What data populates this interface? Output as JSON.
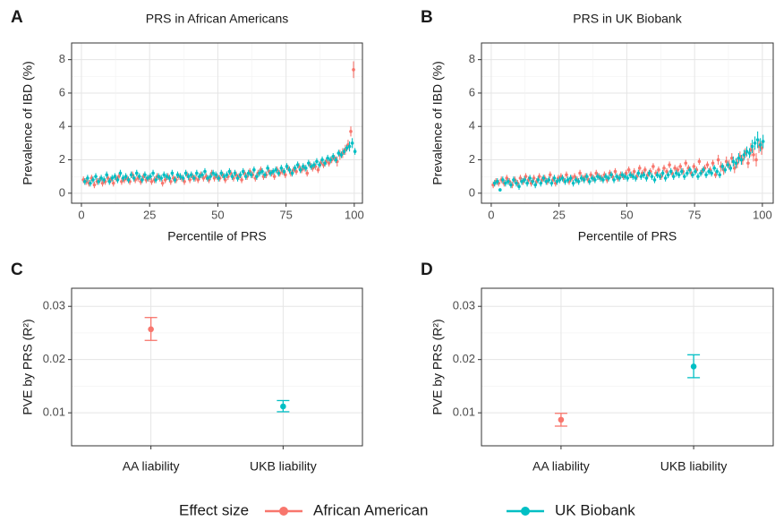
{
  "legend": {
    "title": "Effect size",
    "entries": [
      {
        "name": "African American",
        "color": "#f8766d"
      },
      {
        "name": "UK Biobank",
        "color": "#00bfc4"
      }
    ]
  },
  "chart_data": [
    {
      "type": "errorscatter",
      "panel_label": "A",
      "title": "PRS in African Americans",
      "x_label": "Percentile of PRS",
      "y_label": "Prevalence of IBD (%)",
      "xlim": [
        -3.6,
        103
      ],
      "xticks": [
        0,
        25,
        50,
        75,
        100
      ],
      "ylim": [
        -0.6,
        9
      ],
      "yticks": [
        0,
        2,
        4,
        6,
        8
      ],
      "grid": true,
      "x": [
        1,
        2,
        3,
        4,
        5,
        6,
        7,
        8,
        9,
        10,
        11,
        12,
        13,
        14,
        15,
        16,
        17,
        18,
        19,
        20,
        21,
        22,
        23,
        24,
        25,
        26,
        27,
        28,
        29,
        30,
        31,
        32,
        33,
        34,
        35,
        36,
        37,
        38,
        39,
        40,
        41,
        42,
        43,
        44,
        45,
        46,
        47,
        48,
        49,
        50,
        51,
        52,
        53,
        54,
        55,
        56,
        57,
        58,
        59,
        60,
        61,
        62,
        63,
        64,
        65,
        66,
        67,
        68,
        69,
        70,
        71,
        72,
        73,
        74,
        75,
        76,
        77,
        78,
        79,
        80,
        81,
        82,
        83,
        84,
        85,
        86,
        87,
        88,
        89,
        90,
        91,
        92,
        93,
        94,
        95,
        96,
        97,
        98,
        99,
        100
      ],
      "series": [
        {
          "color": "#f8766d",
          "values": [
            0.8,
            0.7,
            0.6,
            0.9,
            0.5,
            0.7,
            0.8,
            0.6,
            0.7,
            0.9,
            0.8,
            0.6,
            0.9,
            1.0,
            0.7,
            0.8,
            0.9,
            0.7,
            1.1,
            0.8,
            0.9,
            0.7,
            1.0,
            0.8,
            0.9,
            0.7,
            0.8,
            1.0,
            0.9,
            0.6,
            0.8,
            1.0,
            0.7,
            0.9,
            0.8,
            1.0,
            0.9,
            0.7,
            1.1,
            0.8,
            1.0,
            0.9,
            0.8,
            1.1,
            0.9,
            1.0,
            0.8,
            1.2,
            0.9,
            1.0,
            0.9,
            1.1,
            0.8,
            1.0,
            1.2,
            0.9,
            1.1,
            1.0,
            0.8,
            1.2,
            1.0,
            1.3,
            1.1,
            0.9,
            1.2,
            1.4,
            1.0,
            1.1,
            1.3,
            1.2,
            1.0,
            1.4,
            1.2,
            1.3,
            1.1,
            1.5,
            1.2,
            1.4,
            1.3,
            1.6,
            1.4,
            1.5,
            1.2,
            1.7,
            1.5,
            1.6,
            1.4,
            1.8,
            1.7,
            1.9,
            1.8,
            2.0,
            2.1,
            1.9,
            2.3,
            2.4,
            2.6,
            2.9,
            3.7,
            7.4
          ],
          "errors": [
            0.2,
            0.2,
            0.2,
            0.2,
            0.2,
            0.2,
            0.2,
            0.2,
            0.2,
            0.2,
            0.2,
            0.2,
            0.2,
            0.2,
            0.2,
            0.2,
            0.2,
            0.2,
            0.2,
            0.2,
            0.2,
            0.2,
            0.2,
            0.2,
            0.2,
            0.2,
            0.2,
            0.2,
            0.2,
            0.2,
            0.2,
            0.2,
            0.2,
            0.2,
            0.2,
            0.2,
            0.2,
            0.2,
            0.2,
            0.2,
            0.2,
            0.2,
            0.2,
            0.2,
            0.2,
            0.2,
            0.2,
            0.2,
            0.2,
            0.2,
            0.2,
            0.2,
            0.2,
            0.2,
            0.2,
            0.2,
            0.2,
            0.2,
            0.2,
            0.2,
            0.2,
            0.2,
            0.2,
            0.2,
            0.2,
            0.2,
            0.2,
            0.2,
            0.2,
            0.2,
            0.2,
            0.2,
            0.2,
            0.2,
            0.2,
            0.2,
            0.2,
            0.2,
            0.2,
            0.2,
            0.2,
            0.2,
            0.2,
            0.2,
            0.2,
            0.2,
            0.2,
            0.2,
            0.2,
            0.2,
            0.2,
            0.2,
            0.2,
            0.3,
            0.3,
            0.3,
            0.3,
            0.3,
            0.3,
            0.5
          ]
        },
        {
          "color": "#00bfc4",
          "values": [
            0.7,
            0.9,
            0.6,
            0.8,
            1.0,
            0.7,
            0.9,
            0.8,
            1.1,
            0.7,
            0.9,
            1.0,
            0.8,
            1.2,
            0.9,
            1.0,
            0.8,
            1.1,
            0.9,
            1.2,
            1.0,
            0.8,
            1.1,
            0.9,
            1.0,
            1.2,
            0.8,
            1.0,
            0.9,
            1.1,
            1.0,
            0.9,
            1.2,
            0.8,
            1.1,
            1.0,
            0.9,
            1.2,
            1.0,
            1.1,
            0.9,
            1.2,
            1.0,
            1.1,
            1.3,
            0.9,
            1.0,
            1.2,
            1.1,
            0.9,
            1.2,
            1.0,
            1.1,
            1.3,
            1.0,
            1.2,
            0.9,
            1.1,
            1.3,
            1.0,
            1.2,
            1.1,
            1.4,
            1.0,
            1.2,
            1.3,
            1.1,
            1.5,
            1.2,
            1.3,
            1.4,
            1.2,
            1.5,
            1.3,
            1.6,
            1.4,
            1.2,
            1.5,
            1.7,
            1.4,
            1.6,
            1.5,
            1.8,
            1.6,
            1.7,
            1.9,
            1.7,
            2.0,
            1.8,
            2.1,
            2.0,
            2.2,
            2.0,
            2.4,
            2.3,
            2.5,
            2.7,
            2.8,
            3.0,
            2.5
          ],
          "errors": [
            0.2,
            0.2,
            0.2,
            0.2,
            0.2,
            0.2,
            0.2,
            0.2,
            0.2,
            0.2,
            0.2,
            0.2,
            0.2,
            0.2,
            0.2,
            0.2,
            0.2,
            0.2,
            0.2,
            0.2,
            0.2,
            0.2,
            0.2,
            0.2,
            0.2,
            0.2,
            0.2,
            0.2,
            0.2,
            0.2,
            0.2,
            0.2,
            0.2,
            0.2,
            0.2,
            0.2,
            0.2,
            0.2,
            0.2,
            0.2,
            0.2,
            0.2,
            0.2,
            0.2,
            0.2,
            0.2,
            0.2,
            0.2,
            0.2,
            0.2,
            0.2,
            0.2,
            0.2,
            0.2,
            0.2,
            0.2,
            0.2,
            0.2,
            0.2,
            0.2,
            0.2,
            0.2,
            0.2,
            0.2,
            0.2,
            0.2,
            0.2,
            0.2,
            0.2,
            0.2,
            0.2,
            0.2,
            0.2,
            0.2,
            0.2,
            0.2,
            0.2,
            0.2,
            0.2,
            0.2,
            0.2,
            0.2,
            0.2,
            0.2,
            0.2,
            0.2,
            0.2,
            0.2,
            0.2,
            0.2,
            0.2,
            0.2,
            0.2,
            0.2,
            0.2,
            0.2,
            0.2,
            0.3,
            0.3,
            0.2
          ]
        }
      ]
    },
    {
      "type": "errorscatter",
      "panel_label": "B",
      "title": "PRS in UK Biobank",
      "x_label": "Percentile of PRS",
      "y_label": "Prevalence of IBD (%)",
      "xlim": [
        -3.6,
        104
      ],
      "xticks": [
        0,
        25,
        50,
        75,
        100
      ],
      "ylim": [
        -0.6,
        9
      ],
      "yticks": [
        0,
        2,
        4,
        6,
        8
      ],
      "grid": true,
      "x": [
        1,
        2,
        3,
        4,
        5,
        6,
        7,
        8,
        9,
        10,
        11,
        12,
        13,
        14,
        15,
        16,
        17,
        18,
        19,
        20,
        21,
        22,
        23,
        24,
        25,
        26,
        27,
        28,
        29,
        30,
        31,
        32,
        33,
        34,
        35,
        36,
        37,
        38,
        39,
        40,
        41,
        42,
        43,
        44,
        45,
        46,
        47,
        48,
        49,
        50,
        51,
        52,
        53,
        54,
        55,
        56,
        57,
        58,
        59,
        60,
        61,
        62,
        63,
        64,
        65,
        66,
        67,
        68,
        69,
        70,
        71,
        72,
        73,
        74,
        75,
        76,
        77,
        78,
        79,
        80,
        81,
        82,
        83,
        84,
        85,
        86,
        87,
        88,
        89,
        90,
        91,
        92,
        93,
        94,
        95,
        96,
        97,
        98,
        99,
        100
      ],
      "series": [
        {
          "color": "#f8766d",
          "values": [
            0.5,
            0.7,
            0.6,
            0.8,
            0.6,
            0.9,
            0.7,
            0.5,
            0.8,
            0.6,
            0.9,
            0.7,
            1.0,
            0.8,
            0.6,
            0.9,
            0.7,
            1.0,
            0.8,
            0.9,
            0.7,
            1.1,
            0.8,
            0.6,
            0.9,
            1.0,
            0.8,
            1.1,
            0.7,
            0.9,
            1.0,
            0.8,
            1.2,
            0.9,
            1.0,
            0.8,
            1.1,
            0.9,
            1.2,
            1.0,
            0.9,
            1.1,
            0.8,
            1.2,
            1.0,
            1.3,
            0.9,
            1.1,
            1.0,
            1.2,
            1.4,
            1.1,
            1.3,
            1.0,
            1.5,
            1.2,
            1.4,
            1.1,
            1.3,
            1.6,
            1.2,
            1.4,
            1.0,
            1.5,
            1.3,
            1.7,
            1.2,
            1.5,
            1.4,
            1.6,
            1.3,
            1.8,
            1.5,
            1.2,
            1.6,
            1.4,
            1.9,
            1.3,
            1.5,
            1.7,
            1.4,
            1.8,
            1.1,
            2.0,
            1.6,
            1.4,
            1.9,
            1.7,
            2.1,
            1.5,
            1.8,
            2.2,
            2.0,
            2.4,
            1.8,
            2.6,
            2.3,
            2.0,
            2.8,
            2.7
          ],
          "errors": [
            0.2,
            0.2,
            0.2,
            0.2,
            0.2,
            0.2,
            0.2,
            0.2,
            0.2,
            0.2,
            0.2,
            0.2,
            0.2,
            0.2,
            0.2,
            0.2,
            0.2,
            0.2,
            0.2,
            0.2,
            0.2,
            0.2,
            0.2,
            0.2,
            0.2,
            0.2,
            0.2,
            0.2,
            0.2,
            0.2,
            0.2,
            0.2,
            0.2,
            0.2,
            0.2,
            0.2,
            0.2,
            0.2,
            0.2,
            0.2,
            0.2,
            0.2,
            0.2,
            0.2,
            0.2,
            0.2,
            0.2,
            0.2,
            0.2,
            0.2,
            0.2,
            0.2,
            0.2,
            0.2,
            0.2,
            0.2,
            0.2,
            0.2,
            0.2,
            0.2,
            0.2,
            0.2,
            0.2,
            0.2,
            0.2,
            0.2,
            0.2,
            0.2,
            0.2,
            0.2,
            0.2,
            0.2,
            0.2,
            0.2,
            0.2,
            0.2,
            0.2,
            0.2,
            0.2,
            0.2,
            0.2,
            0.2,
            0.2,
            0.3,
            0.3,
            0.3,
            0.3,
            0.3,
            0.3,
            0.3,
            0.3,
            0.3,
            0.3,
            0.3,
            0.3,
            0.4,
            0.4,
            0.4,
            0.4,
            0.4
          ]
        },
        {
          "color": "#00bfc4",
          "values": [
            0.6,
            0.7,
            0.2,
            0.8,
            0.6,
            0.7,
            0.5,
            0.8,
            0.6,
            0.4,
            0.7,
            0.8,
            0.6,
            0.9,
            0.7,
            0.5,
            0.8,
            0.6,
            0.9,
            0.7,
            0.8,
            0.6,
            0.9,
            0.7,
            0.8,
            0.9,
            0.7,
            0.8,
            0.9,
            0.6,
            0.8,
            0.7,
            0.9,
            0.8,
            1.0,
            0.7,
            0.9,
            0.8,
            1.0,
            0.9,
            0.8,
            1.0,
            0.9,
            1.1,
            0.8,
            1.0,
            0.9,
            1.1,
            1.0,
            0.9,
            1.1,
            1.0,
            0.9,
            1.2,
            1.0,
            1.1,
            0.9,
            1.2,
            1.0,
            0.8,
            1.1,
            1.0,
            1.2,
            0.9,
            1.1,
            1.3,
            1.0,
            1.2,
            1.1,
            1.3,
            1.0,
            1.2,
            1.4,
            1.1,
            1.3,
            1.0,
            1.2,
            1.4,
            1.1,
            1.3,
            1.2,
            1.5,
            1.3,
            1.1,
            1.6,
            1.4,
            1.7,
            1.5,
            1.9,
            1.8,
            2.1,
            2.0,
            2.3,
            2.5,
            2.4,
            2.8,
            3.0,
            3.2,
            2.9,
            3.1
          ],
          "errors": [
            0.2,
            0.2,
            0.1,
            0.2,
            0.2,
            0.2,
            0.2,
            0.2,
            0.2,
            0.2,
            0.2,
            0.2,
            0.2,
            0.2,
            0.2,
            0.2,
            0.2,
            0.2,
            0.2,
            0.2,
            0.2,
            0.2,
            0.2,
            0.2,
            0.2,
            0.2,
            0.2,
            0.2,
            0.2,
            0.2,
            0.2,
            0.2,
            0.2,
            0.2,
            0.2,
            0.2,
            0.2,
            0.2,
            0.2,
            0.2,
            0.2,
            0.2,
            0.2,
            0.2,
            0.2,
            0.2,
            0.2,
            0.2,
            0.2,
            0.2,
            0.2,
            0.2,
            0.2,
            0.2,
            0.2,
            0.2,
            0.2,
            0.2,
            0.2,
            0.2,
            0.2,
            0.2,
            0.2,
            0.2,
            0.2,
            0.2,
            0.2,
            0.2,
            0.2,
            0.2,
            0.2,
            0.2,
            0.2,
            0.2,
            0.2,
            0.2,
            0.2,
            0.2,
            0.2,
            0.2,
            0.2,
            0.2,
            0.2,
            0.2,
            0.2,
            0.2,
            0.2,
            0.2,
            0.3,
            0.3,
            0.3,
            0.3,
            0.3,
            0.3,
            0.3,
            0.4,
            0.4,
            0.5,
            0.4,
            0.4
          ]
        }
      ]
    },
    {
      "type": "pointrange",
      "panel_label": "C",
      "y_label": "PVE by PRS (R²)",
      "categories": [
        "AA liability",
        "UKB liability"
      ],
      "values": [
        0.0257,
        0.0112
      ],
      "low": [
        0.0236,
        0.0102
      ],
      "high": [
        0.0279,
        0.0123
      ],
      "colors": [
        "#f8766d",
        "#00bfc4"
      ],
      "ylim": [
        0.0038,
        0.0334
      ],
      "yticks": [
        0.01,
        0.02,
        0.03
      ],
      "grid": true
    },
    {
      "type": "pointrange",
      "panel_label": "D",
      "y_label": "PVE by PRS (R²)",
      "categories": [
        "AA liability",
        "UKB liability"
      ],
      "values": [
        0.0087,
        0.0187
      ],
      "low": [
        0.0075,
        0.0166
      ],
      "high": [
        0.0099,
        0.0209
      ],
      "colors": [
        "#f8766d",
        "#00bfc4"
      ],
      "ylim": [
        0.0038,
        0.0334
      ],
      "yticks": [
        0.01,
        0.02,
        0.03
      ],
      "grid": true
    }
  ]
}
